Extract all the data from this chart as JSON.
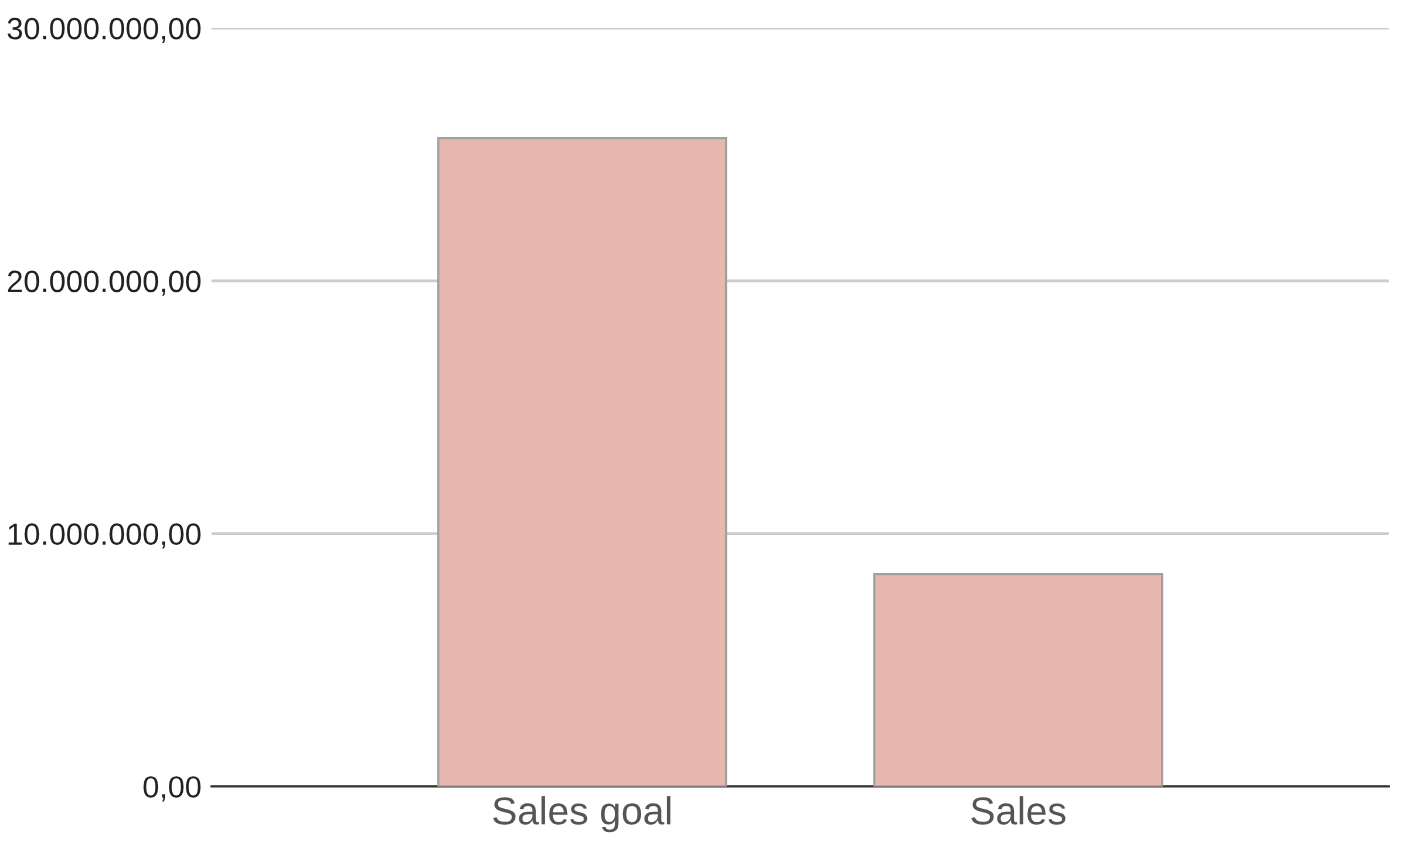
{
  "chart_data": {
    "type": "bar",
    "categories": [
      "Sales goal",
      "Sales"
    ],
    "values": [
      25650000,
      8400000
    ],
    "color": "#e6b8af",
    "ylim": [
      0,
      30000000
    ],
    "yticks": [
      {
        "value": 0,
        "label": "0,00"
      },
      {
        "value": 10000000,
        "label": "10.000.000,00"
      },
      {
        "value": 20000000,
        "label": "20.000.000,00"
      },
      {
        "value": 30000000,
        "label": "30.000.000,00"
      }
    ],
    "grid": "y",
    "legend": false
  }
}
